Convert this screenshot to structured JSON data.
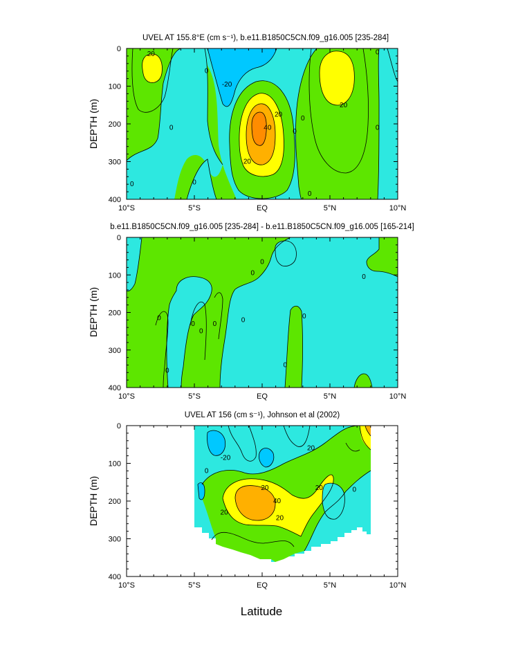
{
  "colors": {
    "below_minus_20": "#00c8ff",
    "minus_20_to_0": "#2de8e0",
    "zero_to_20": "#5de600",
    "twenty_to_40": "#ffff00",
    "forty_to_60": "#ffb000",
    "above_60": "#ff8c00",
    "missing": "#ffffff"
  },
  "chart_data": [
    {
      "type": "contour",
      "title": "UVEL AT 155.8°E (cm s⁻¹), b.e11.B1850C5CN.f09_g16.005 [235-284]",
      "xlabel": "",
      "ylabel": "DEPTH (m)",
      "xlim": [
        -10,
        10
      ],
      "ylim": [
        0,
        400
      ],
      "x_tick_labels": [
        "10°S",
        "5°S",
        "EQ",
        "5°N",
        "10°N"
      ],
      "y_tick_labels": [
        "0",
        "100",
        "200",
        "300",
        "400"
      ],
      "contour_labels": [
        {
          "text": "20",
          "lat": -8.2,
          "depth": 15
        },
        {
          "text": "0",
          "lat": -6.7,
          "depth": 210
        },
        {
          "text": "0",
          "lat": -4.1,
          "depth": 60
        },
        {
          "text": "-20",
          "lat": -2.6,
          "depth": 95
        },
        {
          "text": "20",
          "lat": 1.2,
          "depth": 175
        },
        {
          "text": "40",
          "lat": 0.4,
          "depth": 210
        },
        {
          "text": "20",
          "lat": -1.1,
          "depth": 300
        },
        {
          "text": "0",
          "lat": 3.0,
          "depth": 185
        },
        {
          "text": "0",
          "lat": 2.4,
          "depth": 220
        },
        {
          "text": "20",
          "lat": 6.0,
          "depth": 150
        },
        {
          "text": "0",
          "lat": 8.5,
          "depth": 10
        },
        {
          "text": "0",
          "lat": 8.5,
          "depth": 210
        },
        {
          "text": "0",
          "lat": -9.6,
          "depth": 360
        },
        {
          "text": "0",
          "lat": -5.0,
          "depth": 355
        },
        {
          "text": "0",
          "lat": 3.5,
          "depth": 385
        }
      ]
    },
    {
      "type": "contour",
      "title": "b.e11.B1850C5CN.f09_g16.005 [235-284] - b.e11.B1850C5CN.f09_g16.005 [165-214]",
      "xlabel": "",
      "ylabel": "DEPTH (m)",
      "xlim": [
        -10,
        10
      ],
      "ylim": [
        0,
        400
      ],
      "x_tick_labels": [
        "10°S",
        "5°S",
        "EQ",
        "5°N",
        "10°N"
      ],
      "y_tick_labels": [
        "0",
        "100",
        "200",
        "300",
        "400"
      ],
      "contour_labels": [
        {
          "text": "0",
          "lat": 0.0,
          "depth": 65
        },
        {
          "text": "0",
          "lat": -0.7,
          "depth": 95
        },
        {
          "text": "0",
          "lat": -7.6,
          "depth": 215
        },
        {
          "text": "0",
          "lat": -5.1,
          "depth": 230
        },
        {
          "text": "0",
          "lat": -3.5,
          "depth": 230
        },
        {
          "text": "0",
          "lat": -1.4,
          "depth": 220
        },
        {
          "text": "0",
          "lat": -4.5,
          "depth": 250
        },
        {
          "text": "0",
          "lat": 3.1,
          "depth": 210
        },
        {
          "text": "0",
          "lat": 1.7,
          "depth": 340
        },
        {
          "text": "0",
          "lat": -7.0,
          "depth": 355
        },
        {
          "text": "0",
          "lat": 7.5,
          "depth": 105
        }
      ]
    },
    {
      "type": "contour",
      "title": "UVEL AT 156 (cm s⁻¹), Johnson et al (2002)",
      "xlabel": "Latitude",
      "ylabel": "DEPTH (m)",
      "xlim": [
        -10,
        10
      ],
      "ylim": [
        0,
        400
      ],
      "x_tick_labels": [
        "10°S",
        "5°S",
        "EQ",
        "5°N",
        "10°N"
      ],
      "y_tick_labels": [
        "0",
        "100",
        "200",
        "300",
        "400"
      ],
      "data_extent": {
        "lat_min": -5,
        "lat_max": 8
      },
      "contour_labels": [
        {
          "text": "-20",
          "lat": -2.7,
          "depth": 85
        },
        {
          "text": "20",
          "lat": 3.6,
          "depth": 60
        },
        {
          "text": "20",
          "lat": 0.2,
          "depth": 165
        },
        {
          "text": "40",
          "lat": 1.1,
          "depth": 200
        },
        {
          "text": "20",
          "lat": -2.8,
          "depth": 230
        },
        {
          "text": "20",
          "lat": 1.3,
          "depth": 245
        },
        {
          "text": "20",
          "lat": 4.2,
          "depth": 165
        },
        {
          "text": "0",
          "lat": -4.1,
          "depth": 120
        },
        {
          "text": "0",
          "lat": 6.8,
          "depth": 170
        }
      ]
    }
  ]
}
